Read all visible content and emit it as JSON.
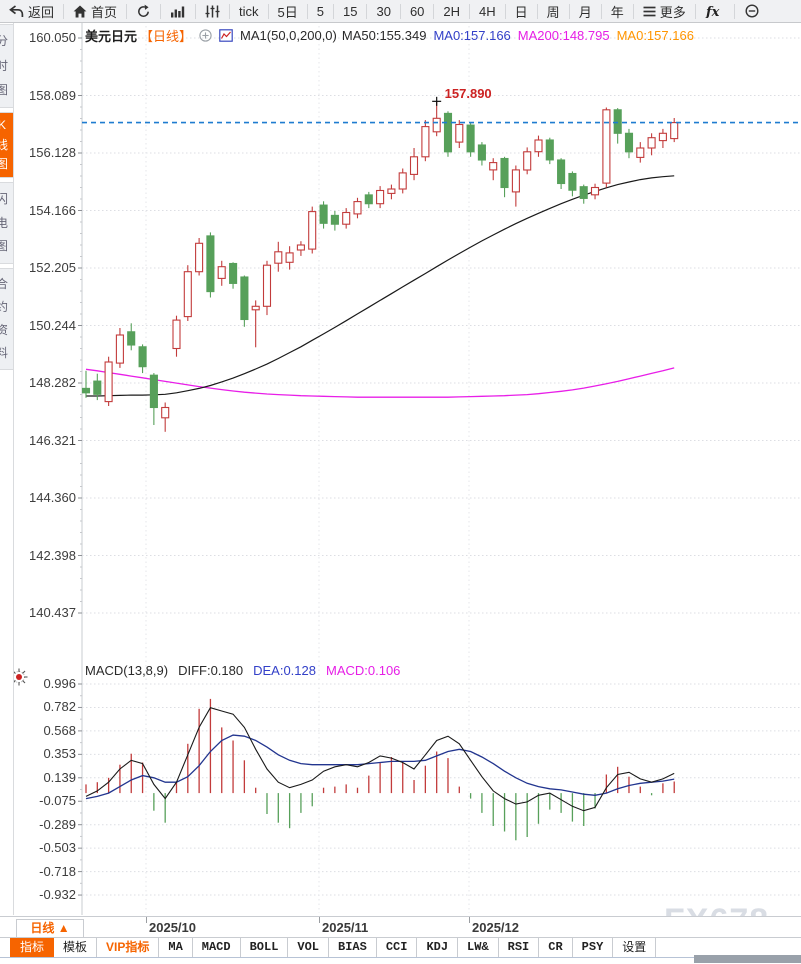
{
  "colors": {
    "accent_orange": "#f66400",
    "candle_up": "#c23b3b",
    "candle_down": "#57a05a",
    "ma50_line": "#1a1a1a",
    "ma200_line": "#e81ee8",
    "diff_line": "#1a1a1a",
    "dea_line": "#22358f",
    "current_price_line": "#1f7cd0",
    "annotation_red": "#cc2222",
    "grid": "#dcdee3"
  },
  "toolbar": {
    "items": [
      {
        "name": "back-button",
        "icon": "back-arrow",
        "label": "返回"
      },
      {
        "name": "home-button",
        "icon": "home",
        "label": "首页"
      },
      {
        "name": "refresh-button",
        "icon": "refresh",
        "label": ""
      },
      {
        "name": "chart-style-button",
        "icon": "bar-chart",
        "label": ""
      },
      {
        "name": "indicator-adjust-button",
        "icon": "equalizer",
        "label": ""
      },
      {
        "name": "interval-tick-button",
        "icon": "",
        "label": "tick"
      },
      {
        "name": "interval-5d-button",
        "icon": "",
        "label": "5日"
      },
      {
        "name": "interval-5m-button",
        "icon": "",
        "label": "5"
      },
      {
        "name": "interval-15m-button",
        "icon": "",
        "label": "15"
      },
      {
        "name": "interval-30m-button",
        "icon": "",
        "label": "30"
      },
      {
        "name": "interval-60m-button",
        "icon": "",
        "label": "60"
      },
      {
        "name": "interval-2h-button",
        "icon": "",
        "label": "2H"
      },
      {
        "name": "interval-4h-button",
        "icon": "",
        "label": "4H"
      },
      {
        "name": "interval-day-button",
        "icon": "",
        "label": "日"
      },
      {
        "name": "interval-week-button",
        "icon": "",
        "label": "周"
      },
      {
        "name": "interval-month-button",
        "icon": "",
        "label": "月"
      },
      {
        "name": "interval-year-button",
        "icon": "",
        "label": "年"
      },
      {
        "name": "more-button",
        "icon": "menu",
        "label": "更多"
      },
      {
        "name": "fx-button",
        "icon": "fx",
        "label": ""
      },
      {
        "name": "zoom-out-button",
        "icon": "zoom-out",
        "label": ""
      }
    ]
  },
  "sidebar": {
    "tabs": [
      {
        "name": "sidebar-tab-time-chart",
        "label": "分时图",
        "active": false
      },
      {
        "name": "sidebar-tab-kline-chart",
        "label": "K线图",
        "active": true
      },
      {
        "name": "sidebar-tab-lightning-chart",
        "label": "闪电图",
        "active": false
      },
      {
        "name": "sidebar-tab-contract-info",
        "label": "合约资料",
        "active": false
      }
    ]
  },
  "title_bar": {
    "symbol": "美元日元",
    "period_tag": "【日线】",
    "ma_settings": "MA1(50,0,200,0)",
    "ma50_label": "MA50:155.349",
    "ma0_blue_label": "MA0:157.166",
    "ma200_label": "MA200:148.795",
    "ma0_orange_label": "MA0:157.166"
  },
  "macd_header": {
    "name": "MACD(13,8,9)",
    "diff_label": "DIFF:0.180",
    "dea_label": "DEA:0.128",
    "macd_label": "MACD:0.106"
  },
  "annotation": {
    "text": "157.890",
    "price": 157.89,
    "candle_index": 31
  },
  "current_price": 157.166,
  "bottom_bar": {
    "period_label": "日线 ▲",
    "tabs": [
      {
        "name": "tab-indicator",
        "label": "指标",
        "style": "active"
      },
      {
        "name": "tab-template",
        "label": "模板",
        "style": "normal"
      },
      {
        "name": "tab-vip-indicator",
        "label": "VIP指标",
        "style": "vip"
      },
      {
        "name": "tab-ma",
        "label": "MA",
        "style": "mono"
      },
      {
        "name": "tab-macd",
        "label": "MACD",
        "style": "mono"
      },
      {
        "name": "tab-boll",
        "label": "BOLL",
        "style": "mono"
      },
      {
        "name": "tab-vol",
        "label": "VOL",
        "style": "mono"
      },
      {
        "name": "tab-bias",
        "label": "BIAS",
        "style": "mono"
      },
      {
        "name": "tab-cci",
        "label": "CCI",
        "style": "mono"
      },
      {
        "name": "tab-kdj",
        "label": "KDJ",
        "style": "mono"
      },
      {
        "name": "tab-lwr",
        "label": "LW&",
        "style": "mono"
      },
      {
        "name": "tab-rsi",
        "label": "RSI",
        "style": "mono"
      },
      {
        "name": "tab-cr",
        "label": "CR",
        "style": "mono"
      },
      {
        "name": "tab-psy",
        "label": "PSY",
        "style": "mono"
      },
      {
        "name": "tab-settings",
        "label": "设置",
        "style": "normal"
      }
    ]
  },
  "watermark": "FX678",
  "chart_data": {
    "type": "candlestick",
    "title": "美元日元 日线 (USD/JPY daily) with MA50/MA200 and MACD(13,8,9)",
    "y_ticks_main": [
      "160.050",
      "158.089",
      "156.128",
      "154.166",
      "152.205",
      "150.244",
      "148.282",
      "146.321",
      "144.360",
      "142.398",
      "140.437"
    ],
    "y_ticks_macd": [
      "0.996",
      "0.782",
      "0.568",
      "0.353",
      "0.139",
      "-0.075",
      "-0.289",
      "-0.503",
      "-0.718",
      "-0.932"
    ],
    "x_ticks": [
      {
        "label": "2025/10",
        "x": 146
      },
      {
        "label": "2025/11",
        "x": 319
      },
      {
        "label": "2025/12",
        "x": 469
      }
    ],
    "y_range_main": [
      140.437,
      160.05
    ],
    "y_range_macd": [
      -0.932,
      0.996
    ],
    "candles": [
      [
        148.1,
        148.7,
        147.78,
        147.95
      ],
      [
        148.35,
        148.6,
        147.7,
        147.9
      ],
      [
        147.65,
        149.18,
        147.5,
        149.0
      ],
      [
        148.96,
        150.16,
        148.8,
        149.92
      ],
      [
        150.03,
        150.32,
        149.4,
        149.58
      ],
      [
        149.52,
        149.6,
        148.62,
        148.84
      ],
      [
        148.55,
        148.62,
        146.85,
        147.45
      ],
      [
        147.1,
        147.62,
        146.62,
        147.45
      ],
      [
        149.46,
        150.58,
        149.18,
        150.43
      ],
      [
        150.55,
        152.3,
        150.4,
        152.08
      ],
      [
        152.08,
        153.23,
        151.95,
        153.05
      ],
      [
        153.3,
        153.42,
        151.2,
        151.4
      ],
      [
        151.85,
        152.45,
        151.6,
        152.25
      ],
      [
        152.36,
        152.4,
        151.5,
        151.68
      ],
      [
        151.9,
        151.95,
        150.2,
        150.45
      ],
      [
        150.78,
        151.1,
        149.5,
        150.9
      ],
      [
        150.9,
        152.45,
        150.6,
        152.3
      ],
      [
        152.37,
        153.1,
        152.08,
        152.76
      ],
      [
        152.4,
        152.95,
        152.15,
        152.72
      ],
      [
        152.82,
        153.12,
        152.62,
        152.99
      ],
      [
        152.85,
        154.3,
        152.7,
        154.13
      ],
      [
        154.35,
        154.48,
        153.55,
        153.73
      ],
      [
        154.0,
        154.15,
        153.48,
        153.7
      ],
      [
        153.7,
        154.25,
        153.55,
        154.1
      ],
      [
        154.05,
        154.6,
        153.9,
        154.47
      ],
      [
        154.7,
        154.8,
        154.25,
        154.4
      ],
      [
        154.4,
        155.0,
        154.25,
        154.85
      ],
      [
        154.75,
        155.05,
        154.55,
        154.9
      ],
      [
        154.9,
        155.6,
        154.75,
        155.45
      ],
      [
        155.4,
        156.3,
        155.2,
        156.0
      ],
      [
        156.0,
        157.25,
        155.85,
        157.03
      ],
      [
        156.85,
        157.89,
        156.7,
        157.31
      ],
      [
        157.48,
        157.55,
        156.0,
        156.17
      ],
      [
        156.5,
        157.25,
        156.3,
        157.1
      ],
      [
        157.08,
        157.15,
        156.0,
        156.17
      ],
      [
        156.4,
        156.5,
        155.7,
        155.89
      ],
      [
        155.55,
        155.95,
        155.2,
        155.8
      ],
      [
        155.94,
        156.0,
        154.62,
        154.95
      ],
      [
        154.8,
        155.7,
        154.3,
        155.55
      ],
      [
        155.55,
        156.32,
        155.4,
        156.17
      ],
      [
        156.17,
        156.72,
        156.0,
        156.57
      ],
      [
        156.57,
        156.65,
        155.75,
        155.89
      ],
      [
        155.89,
        155.95,
        154.9,
        155.09
      ],
      [
        155.43,
        155.5,
        154.65,
        154.86
      ],
      [
        154.98,
        155.05,
        154.4,
        154.58
      ],
      [
        154.7,
        155.08,
        154.55,
        154.95
      ],
      [
        155.1,
        157.68,
        154.95,
        157.6
      ],
      [
        157.6,
        157.66,
        156.45,
        156.8
      ],
      [
        156.8,
        156.95,
        155.95,
        156.17
      ],
      [
        155.98,
        156.5,
        155.8,
        156.3
      ],
      [
        156.3,
        156.8,
        156.05,
        156.65
      ],
      [
        156.55,
        156.95,
        156.3,
        156.8
      ],
      [
        156.62,
        157.32,
        156.5,
        157.166
      ]
    ],
    "ma50": [
      147.84,
      147.84,
      147.85,
      147.86,
      147.87,
      147.87,
      147.88,
      147.9,
      147.95,
      148.02,
      148.1,
      148.2,
      148.32,
      148.45,
      148.6,
      148.76,
      148.93,
      149.12,
      149.32,
      149.52,
      149.74,
      149.96,
      150.18,
      150.41,
      150.64,
      150.87,
      151.1,
      151.33,
      151.56,
      151.79,
      152.02,
      152.25,
      152.48,
      152.7,
      152.92,
      153.13,
      153.33,
      153.53,
      153.72,
      153.9,
      154.07,
      154.24,
      154.4,
      154.55,
      154.69,
      154.82,
      154.94,
      155.05,
      155.14,
      155.22,
      155.28,
      155.32,
      155.35
    ],
    "ma200": [
      148.75,
      148.7,
      148.64,
      148.58,
      148.52,
      148.46,
      148.4,
      148.34,
      148.28,
      148.22,
      148.16,
      148.11,
      148.06,
      148.01,
      147.97,
      147.94,
      147.91,
      147.89,
      147.87,
      147.85,
      147.84,
      147.83,
      147.82,
      147.81,
      147.8,
      147.8,
      147.8,
      147.8,
      147.8,
      147.8,
      147.8,
      147.8,
      147.8,
      147.81,
      147.82,
      147.83,
      147.84,
      147.85,
      147.87,
      147.89,
      147.92,
      147.96,
      148.0,
      148.05,
      148.11,
      148.18,
      148.26,
      148.34,
      148.43,
      148.52,
      148.61,
      148.7,
      148.8
    ],
    "macd": {
      "hist": [
        0.08,
        0.1,
        0.14,
        0.26,
        0.36,
        0.28,
        -0.16,
        -0.27,
        0.1,
        0.45,
        0.77,
        0.86,
        0.6,
        0.48,
        0.3,
        0.05,
        -0.19,
        -0.27,
        -0.32,
        -0.18,
        -0.12,
        0.05,
        0.06,
        0.08,
        0.05,
        0.16,
        0.28,
        0.33,
        0.28,
        0.12,
        0.25,
        0.38,
        0.32,
        0.06,
        -0.05,
        -0.18,
        -0.3,
        -0.35,
        -0.43,
        -0.4,
        -0.28,
        -0.15,
        -0.18,
        -0.26,
        -0.3,
        -0.14,
        0.17,
        0.24,
        0.15,
        0.06,
        -0.02,
        0.09,
        0.106
      ],
      "diff": [
        -0.03,
        0.02,
        0.1,
        0.22,
        0.3,
        0.27,
        0.08,
        -0.05,
        0.1,
        0.35,
        0.6,
        0.78,
        0.75,
        0.72,
        0.6,
        0.4,
        0.22,
        0.1,
        0.05,
        0.08,
        0.12,
        0.2,
        0.24,
        0.26,
        0.24,
        0.28,
        0.34,
        0.32,
        0.28,
        0.22,
        0.35,
        0.48,
        0.52,
        0.45,
        0.3,
        0.15,
        0.02,
        -0.05,
        -0.1,
        -0.08,
        -0.02,
        0.0,
        -0.06,
        -0.12,
        -0.16,
        -0.13,
        0.05,
        0.17,
        0.19,
        0.13,
        0.1,
        0.13,
        0.18
      ],
      "dea": [
        -0.05,
        -0.03,
        0.0,
        0.06,
        0.12,
        0.16,
        0.14,
        0.1,
        0.1,
        0.15,
        0.25,
        0.38,
        0.48,
        0.53,
        0.52,
        0.48,
        0.42,
        0.35,
        0.3,
        0.27,
        0.26,
        0.26,
        0.26,
        0.26,
        0.26,
        0.27,
        0.28,
        0.29,
        0.29,
        0.29,
        0.3,
        0.34,
        0.38,
        0.4,
        0.38,
        0.33,
        0.27,
        0.2,
        0.14,
        0.09,
        0.06,
        0.04,
        0.03,
        0.01,
        -0.01,
        -0.02,
        0.0,
        0.04,
        0.07,
        0.09,
        0.1,
        0.11,
        0.128
      ]
    }
  }
}
